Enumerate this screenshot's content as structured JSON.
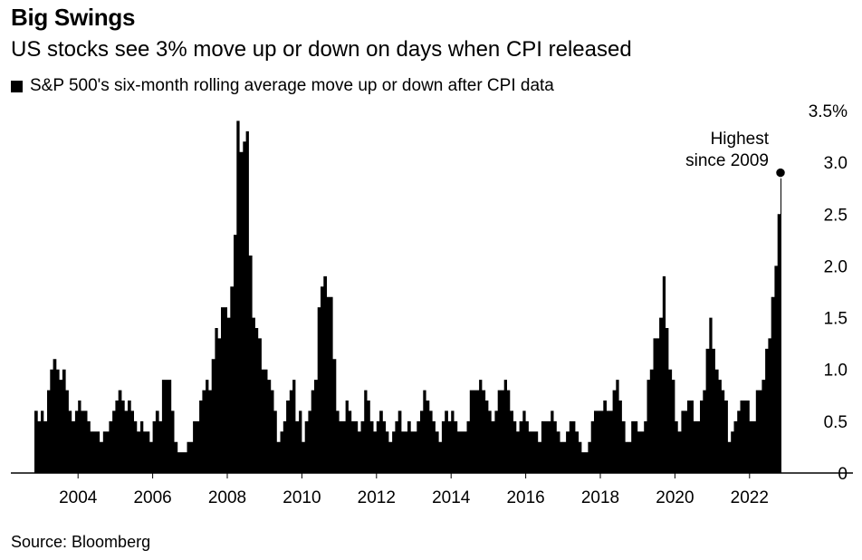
{
  "header": {
    "title": "Big Swings",
    "subtitle": "US stocks see 3% move up or down on days when CPI released"
  },
  "legend": {
    "label": "S&P 500's six-month rolling average move up or down after CPI data"
  },
  "annotation": {
    "line1": "Highest",
    "line2": "since 2009"
  },
  "footer": {
    "source": "Source: Bloomberg"
  },
  "colors": {
    "area": "#000000",
    "background": "#ffffff",
    "axis": "#000000"
  },
  "chart_data": {
    "type": "area",
    "title": "Big Swings",
    "subtitle": "US stocks see 3% move up or down on days when CPI released",
    "series": [
      {
        "name": "S&P 500's six-month rolling average move up or down after CPI data",
        "x": [
          2002.83,
          2002.92,
          2003.0,
          2003.08,
          2003.17,
          2003.25,
          2003.33,
          2003.42,
          2003.5,
          2003.58,
          2003.67,
          2003.75,
          2003.83,
          2003.92,
          2004.0,
          2004.08,
          2004.17,
          2004.25,
          2004.33,
          2004.42,
          2004.5,
          2004.58,
          2004.67,
          2004.75,
          2004.83,
          2004.92,
          2005.0,
          2005.08,
          2005.17,
          2005.25,
          2005.33,
          2005.42,
          2005.5,
          2005.58,
          2005.67,
          2005.75,
          2005.83,
          2005.92,
          2006.0,
          2006.08,
          2006.17,
          2006.25,
          2006.33,
          2006.42,
          2006.5,
          2006.58,
          2006.67,
          2006.75,
          2006.83,
          2006.92,
          2007.0,
          2007.08,
          2007.17,
          2007.25,
          2007.33,
          2007.42,
          2007.5,
          2007.58,
          2007.67,
          2007.75,
          2007.83,
          2007.92,
          2008.0,
          2008.08,
          2008.17,
          2008.25,
          2008.33,
          2008.42,
          2008.5,
          2008.58,
          2008.67,
          2008.75,
          2008.83,
          2008.92,
          2009.0,
          2009.08,
          2009.17,
          2009.25,
          2009.33,
          2009.42,
          2009.5,
          2009.58,
          2009.67,
          2009.75,
          2009.83,
          2009.92,
          2010.0,
          2010.08,
          2010.17,
          2010.25,
          2010.33,
          2010.42,
          2010.5,
          2010.58,
          2010.67,
          2010.75,
          2010.83,
          2010.92,
          2011.0,
          2011.08,
          2011.17,
          2011.25,
          2011.33,
          2011.42,
          2011.5,
          2011.58,
          2011.67,
          2011.75,
          2011.83,
          2011.92,
          2012.0,
          2012.08,
          2012.17,
          2012.25,
          2012.33,
          2012.42,
          2012.5,
          2012.58,
          2012.67,
          2012.75,
          2012.83,
          2012.92,
          2013.0,
          2013.08,
          2013.17,
          2013.25,
          2013.33,
          2013.42,
          2013.5,
          2013.58,
          2013.67,
          2013.75,
          2013.83,
          2013.92,
          2014.0,
          2014.08,
          2014.17,
          2014.25,
          2014.33,
          2014.42,
          2014.5,
          2014.58,
          2014.67,
          2014.75,
          2014.83,
          2014.92,
          2015.0,
          2015.08,
          2015.17,
          2015.25,
          2015.33,
          2015.42,
          2015.5,
          2015.58,
          2015.67,
          2015.75,
          2015.83,
          2015.92,
          2016.0,
          2016.08,
          2016.17,
          2016.25,
          2016.33,
          2016.42,
          2016.5,
          2016.58,
          2016.67,
          2016.75,
          2016.83,
          2016.92,
          2017.0,
          2017.08,
          2017.17,
          2017.25,
          2017.33,
          2017.42,
          2017.5,
          2017.58,
          2017.67,
          2017.75,
          2017.83,
          2017.92,
          2018.0,
          2018.08,
          2018.17,
          2018.25,
          2018.33,
          2018.42,
          2018.5,
          2018.58,
          2018.67,
          2018.75,
          2018.83,
          2018.92,
          2019.0,
          2019.08,
          2019.17,
          2019.25,
          2019.33,
          2019.42,
          2019.5,
          2019.58,
          2019.67,
          2019.75,
          2019.83,
          2019.92,
          2020.0,
          2020.08,
          2020.17,
          2020.25,
          2020.33,
          2020.42,
          2020.5,
          2020.58,
          2020.67,
          2020.75,
          2020.83,
          2020.92,
          2021.0,
          2021.08,
          2021.17,
          2021.25,
          2021.33,
          2021.42,
          2021.5,
          2021.58,
          2021.67,
          2021.75,
          2021.83,
          2021.92,
          2022.0,
          2022.08,
          2022.17,
          2022.25,
          2022.33,
          2022.42,
          2022.5,
          2022.58,
          2022.67,
          2022.75,
          2022.83
        ],
        "values": [
          0.6,
          0.5,
          0.6,
          0.5,
          0.8,
          1.0,
          1.1,
          1.0,
          0.9,
          1.0,
          0.8,
          0.6,
          0.5,
          0.6,
          0.7,
          0.6,
          0.6,
          0.5,
          0.4,
          0.4,
          0.4,
          0.3,
          0.4,
          0.4,
          0.5,
          0.6,
          0.7,
          0.8,
          0.7,
          0.6,
          0.7,
          0.6,
          0.5,
          0.4,
          0.5,
          0.4,
          0.4,
          0.3,
          0.5,
          0.6,
          0.5,
          0.9,
          0.9,
          0.9,
          0.6,
          0.3,
          0.2,
          0.2,
          0.2,
          0.3,
          0.3,
          0.5,
          0.5,
          0.7,
          0.8,
          0.9,
          0.8,
          1.1,
          1.4,
          1.3,
          1.6,
          1.6,
          1.5,
          1.8,
          2.3,
          3.4,
          3.1,
          3.2,
          3.3,
          2.1,
          1.5,
          1.4,
          1.3,
          1.0,
          1.0,
          0.9,
          0.8,
          0.6,
          0.3,
          0.4,
          0.5,
          0.7,
          0.8,
          0.9,
          0.5,
          0.6,
          0.3,
          0.5,
          0.6,
          0.8,
          0.9,
          1.6,
          1.8,
          1.9,
          1.7,
          1.7,
          1.1,
          0.6,
          0.5,
          0.5,
          0.7,
          0.6,
          0.5,
          0.5,
          0.4,
          0.5,
          0.8,
          0.7,
          0.5,
          0.4,
          0.5,
          0.6,
          0.5,
          0.4,
          0.3,
          0.4,
          0.5,
          0.6,
          0.4,
          0.4,
          0.5,
          0.4,
          0.4,
          0.5,
          0.6,
          0.8,
          0.7,
          0.6,
          0.5,
          0.4,
          0.3,
          0.5,
          0.6,
          0.5,
          0.6,
          0.5,
          0.4,
          0.4,
          0.4,
          0.5,
          0.8,
          0.8,
          0.8,
          0.9,
          0.8,
          0.7,
          0.6,
          0.5,
          0.6,
          0.8,
          0.8,
          0.9,
          0.8,
          0.6,
          0.5,
          0.4,
          0.5,
          0.6,
          0.5,
          0.4,
          0.4,
          0.4,
          0.3,
          0.5,
          0.5,
          0.5,
          0.6,
          0.5,
          0.4,
          0.3,
          0.3,
          0.4,
          0.5,
          0.5,
          0.4,
          0.3,
          0.2,
          0.2,
          0.3,
          0.5,
          0.6,
          0.6,
          0.6,
          0.7,
          0.6,
          0.6,
          0.8,
          0.9,
          0.7,
          0.5,
          0.3,
          0.3,
          0.5,
          0.5,
          0.4,
          0.4,
          0.5,
          0.9,
          1.0,
          1.3,
          1.3,
          1.5,
          1.9,
          1.4,
          1.0,
          0.9,
          0.5,
          0.4,
          0.6,
          0.6,
          0.7,
          0.7,
          0.5,
          0.5,
          0.7,
          0.8,
          1.2,
          1.5,
          1.2,
          1.0,
          0.9,
          0.8,
          0.7,
          0.3,
          0.4,
          0.5,
          0.6,
          0.7,
          0.7,
          0.7,
          0.5,
          0.5,
          0.8,
          0.8,
          0.9,
          1.2,
          1.3,
          1.7,
          2.0,
          2.5,
          2.9
        ]
      }
    ],
    "yticks": [
      0,
      0.5,
      1.0,
      1.5,
      2.0,
      2.5,
      3.0,
      3.5
    ],
    "ytick_labels": [
      "0",
      "0.5",
      "1.0",
      "1.5",
      "2.0",
      "2.5",
      "3.0",
      "3.5%"
    ],
    "xticks": [
      2004,
      2006,
      2008,
      2010,
      2012,
      2014,
      2016,
      2018,
      2020,
      2022
    ],
    "xtick_labels": [
      "2004",
      "2006",
      "2008",
      "2010",
      "2012",
      "2014",
      "2016",
      "2018",
      "2020",
      "2022"
    ],
    "xlim": [
      2002.83,
      2022.83
    ],
    "ylim": [
      0,
      3.5
    ],
    "grid": false,
    "highlight_point": {
      "x": 2022.83,
      "y": 2.9
    },
    "legend_position": "top-left"
  }
}
